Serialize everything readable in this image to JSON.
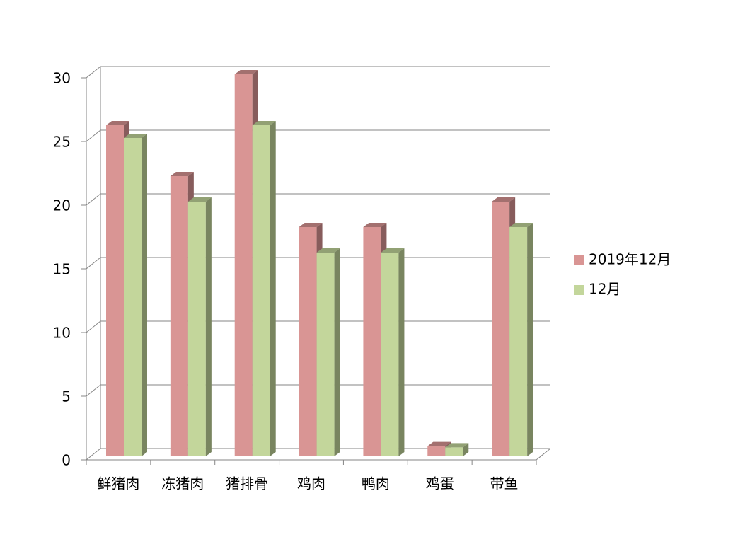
{
  "chart_data": {
    "type": "bar3d",
    "categories": [
      "鲜猪肉",
      "冻猪肉",
      "猪排骨",
      "鸡肉",
      "鸭肉",
      "鸡蛋",
      "带鱼"
    ],
    "series": [
      {
        "name": "2019年12月",
        "color": "#d99594",
        "values": [
          26,
          22,
          30,
          18,
          18,
          0.8,
          20
        ]
      },
      {
        "name": "12月",
        "color": "#c3d69b",
        "values": [
          25,
          20,
          26,
          16,
          16,
          0.7,
          18
        ]
      }
    ],
    "ylim": [
      0,
      30
    ],
    "yticks": [
      0,
      5,
      10,
      15,
      20,
      25,
      30
    ],
    "grid": true,
    "legend": "right"
  }
}
